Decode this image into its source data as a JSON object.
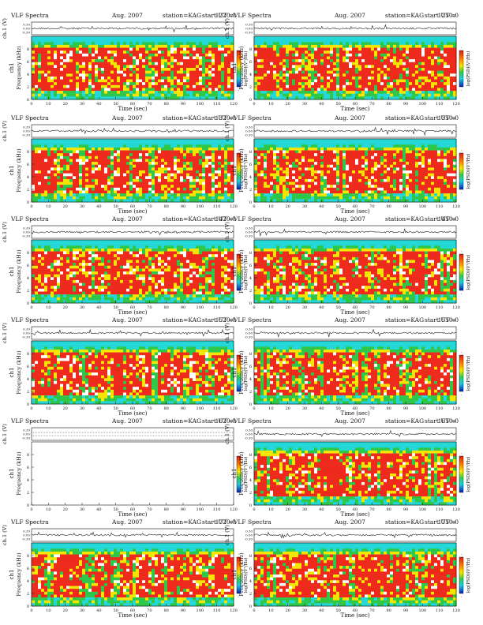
{
  "header": {
    "title": "VLF Spectra",
    "date": "Aug. 2007",
    "station": "station=KAG",
    "start_prefix": "start  UT  ="
  },
  "labels": {
    "waveform_axis": "ch.1 (V)",
    "channel": "ch1",
    "freq_axis": "Frequency (kHz)",
    "xlabel": "Time (sec)",
    "colorbar_label": "log(PSD)(V²/Hz)",
    "cb_top": "-",
    "cb_bottom": "-"
  },
  "colors": {
    "red": "#ee2a1c",
    "yellow": "#f4e600",
    "green": "#2ec74a",
    "cyan": "#25d8d8",
    "white": "#ffffff",
    "trace": "#222222"
  },
  "chart_data": [
    {
      "type": "heatmap",
      "start_time": "1220:0",
      "xlim": [
        0,
        120
      ],
      "ylim": [
        0,
        10
      ],
      "ylim_wave": [
        -0.3,
        0.3
      ],
      "has_data": true,
      "xticks": [
        0,
        10,
        20,
        30,
        40,
        50,
        60,
        70,
        80,
        90,
        100,
        110,
        120
      ],
      "yticks": [
        0,
        2,
        4,
        6,
        8
      ],
      "wave_ticks": [
        "0.30",
        "0.00",
        "-0.30"
      ]
    },
    {
      "type": "heatmap",
      "start_time": "1250:0",
      "xlim": [
        0,
        120
      ],
      "ylim": [
        0,
        10
      ],
      "ylim_wave": [
        -0.3,
        0.3
      ],
      "has_data": true,
      "xticks": [
        0,
        10,
        20,
        30,
        40,
        50,
        60,
        70,
        80,
        90,
        100,
        110,
        120
      ],
      "yticks": [
        0,
        2,
        4,
        6,
        8
      ],
      "wave_ticks": [
        "0.30",
        "0.00",
        "-0.30"
      ]
    },
    {
      "type": "heatmap",
      "start_time": "1320:0",
      "xlim": [
        0,
        120
      ],
      "ylim": [
        0,
        10
      ],
      "ylim_wave": [
        -0.3,
        0.3
      ],
      "has_data": true,
      "xticks": [
        0,
        10,
        20,
        30,
        40,
        50,
        60,
        70,
        80,
        90,
        100,
        110,
        120
      ],
      "yticks": [
        0,
        2,
        4,
        6,
        8
      ],
      "wave_ticks": [
        "0.30",
        "0.00",
        "-0.30"
      ]
    },
    {
      "type": "heatmap",
      "start_time": "1350:0",
      "xlim": [
        0,
        120
      ],
      "ylim": [
        0,
        10
      ],
      "ylim_wave": [
        -0.3,
        0.3
      ],
      "has_data": true,
      "xticks": [
        0,
        10,
        20,
        30,
        40,
        50,
        60,
        70,
        80,
        90,
        100,
        110,
        120
      ],
      "yticks": [
        0,
        2,
        4,
        6,
        8
      ],
      "wave_ticks": [
        "0.30",
        "0.00",
        "-0.30"
      ]
    },
    {
      "type": "heatmap",
      "start_time": "1420:0",
      "xlim": [
        0,
        120
      ],
      "ylim": [
        0,
        10
      ],
      "ylim_wave": [
        -0.3,
        0.3
      ],
      "has_data": true,
      "xticks": [
        0,
        10,
        20,
        30,
        40,
        50,
        60,
        70,
        80,
        90,
        100,
        110,
        120
      ],
      "yticks": [
        0,
        2,
        4,
        6,
        8
      ],
      "wave_ticks": [
        "0.30",
        "0.00",
        "-0.30"
      ]
    },
    {
      "type": "heatmap",
      "start_time": "1450:0",
      "xlim": [
        0,
        120
      ],
      "ylim": [
        0,
        10
      ],
      "ylim_wave": [
        -0.3,
        0.3
      ],
      "has_data": true,
      "xticks": [
        0,
        10,
        20,
        30,
        40,
        50,
        60,
        70,
        80,
        90,
        100,
        110,
        120
      ],
      "yticks": [
        0,
        2,
        4,
        6,
        8
      ],
      "wave_ticks": [
        "0.30",
        "0.00",
        "-0.30"
      ]
    },
    {
      "type": "heatmap",
      "start_time": "1520:0",
      "xlim": [
        0,
        120
      ],
      "ylim": [
        0,
        10
      ],
      "ylim_wave": [
        -0.3,
        0.3
      ],
      "has_data": true,
      "xticks": [
        0,
        10,
        20,
        30,
        40,
        50,
        60,
        70,
        80,
        90,
        100,
        110,
        120
      ],
      "yticks": [
        0,
        2,
        4,
        6,
        8
      ],
      "wave_ticks": [
        "0.30",
        "0.00",
        "-0.30"
      ]
    },
    {
      "type": "heatmap",
      "start_time": "1550:0",
      "xlim": [
        0,
        120
      ],
      "ylim": [
        0,
        10
      ],
      "ylim_wave": [
        -0.3,
        0.3
      ],
      "has_data": true,
      "xticks": [
        0,
        10,
        20,
        30,
        40,
        50,
        60,
        70,
        80,
        90,
        100,
        110,
        120
      ],
      "yticks": [
        0,
        2,
        4,
        6,
        8
      ],
      "wave_ticks": [
        "0.30",
        "0.00",
        "-0.30"
      ]
    },
    {
      "type": "heatmap",
      "start_time": "1620:0",
      "xlim": [
        0,
        120
      ],
      "ylim": [
        0,
        10
      ],
      "ylim_wave": [
        -0.3,
        0.3
      ],
      "has_data": false,
      "xticks": [
        0,
        10,
        20,
        30,
        40,
        50,
        60,
        70,
        80,
        90,
        100,
        110,
        120
      ],
      "yticks": [
        0,
        2,
        4,
        6,
        8
      ],
      "wave_ticks": [
        "0.30",
        "0.00",
        "-0.30"
      ]
    },
    {
      "type": "heatmap",
      "start_time": "1650:0",
      "xlim": [
        0,
        120
      ],
      "ylim": [
        0,
        10
      ],
      "ylim_wave": [
        -0.3,
        0.3
      ],
      "has_data": true,
      "xticks": [
        0,
        10,
        20,
        30,
        40,
        50,
        60,
        70,
        80,
        90,
        100,
        110,
        120
      ],
      "yticks": [
        0,
        2,
        4,
        6,
        8
      ],
      "wave_ticks": [
        "0.30",
        "0.00",
        "-0.30"
      ]
    },
    {
      "type": "heatmap",
      "start_time": "1720:0",
      "xlim": [
        0,
        120
      ],
      "ylim": [
        0,
        10
      ],
      "ylim_wave": [
        -0.3,
        0.3
      ],
      "has_data": true,
      "xticks": [
        0,
        10,
        20,
        30,
        40,
        50,
        60,
        70,
        80,
        90,
        100,
        110,
        120
      ],
      "yticks": [
        0,
        2,
        4,
        6,
        8
      ],
      "wave_ticks": [
        "0.30",
        "0.00",
        "-0.30"
      ]
    },
    {
      "type": "heatmap",
      "start_time": "1750:0",
      "xlim": [
        0,
        120
      ],
      "ylim": [
        0,
        10
      ],
      "ylim_wave": [
        -0.3,
        0.3
      ],
      "has_data": true,
      "xticks": [
        0,
        10,
        20,
        30,
        40,
        50,
        60,
        70,
        80,
        90,
        100,
        110,
        120
      ],
      "yticks": [
        0,
        2,
        4,
        6,
        8
      ],
      "wave_ticks": [
        "0.30",
        "0.00",
        "-0.30"
      ]
    }
  ]
}
